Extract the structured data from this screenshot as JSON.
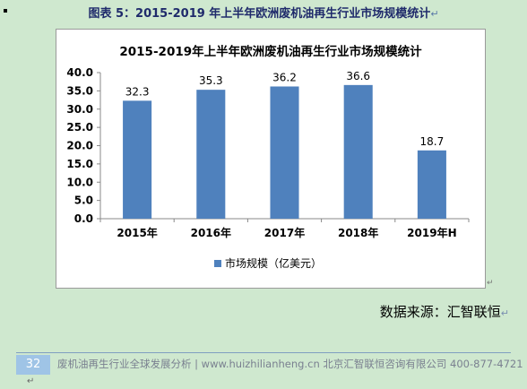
{
  "caption": {
    "text": "图表 5：2015-2019 年上半年欧洲废机油再生行业市场规模统计"
  },
  "chart_data": {
    "type": "bar",
    "title": "2015-2019年上半年欧洲废机油再生行业市场规模统计",
    "categories": [
      "2015年",
      "2016年",
      "2017年",
      "2018年",
      "2019年H"
    ],
    "series": [
      {
        "name": "市场规模（亿美元）",
        "values": [
          32.3,
          35.3,
          36.2,
          36.6,
          18.7
        ]
      }
    ],
    "data_labels": [
      "32.3",
      "35.3",
      "36.2",
      "36.6",
      "18.7"
    ],
    "ylim": [
      0,
      40
    ],
    "yticks": [
      "0.0",
      "5.0",
      "10.0",
      "15.0",
      "20.0",
      "25.0",
      "30.0",
      "35.0",
      "40.0"
    ],
    "xlabel": "",
    "ylabel": "",
    "grid": false,
    "legend_position": "bottom",
    "colors": {
      "bar": "#4f81bd",
      "axis": "#888888"
    }
  },
  "source": {
    "text": "数据来源：汇智联恒"
  },
  "footer": {
    "page_number": "32",
    "text": "废机油再生行业全球发展分析 | www.huizhilianheng.cn 北京汇智联恒咨询有限公司 400-877-4721"
  }
}
